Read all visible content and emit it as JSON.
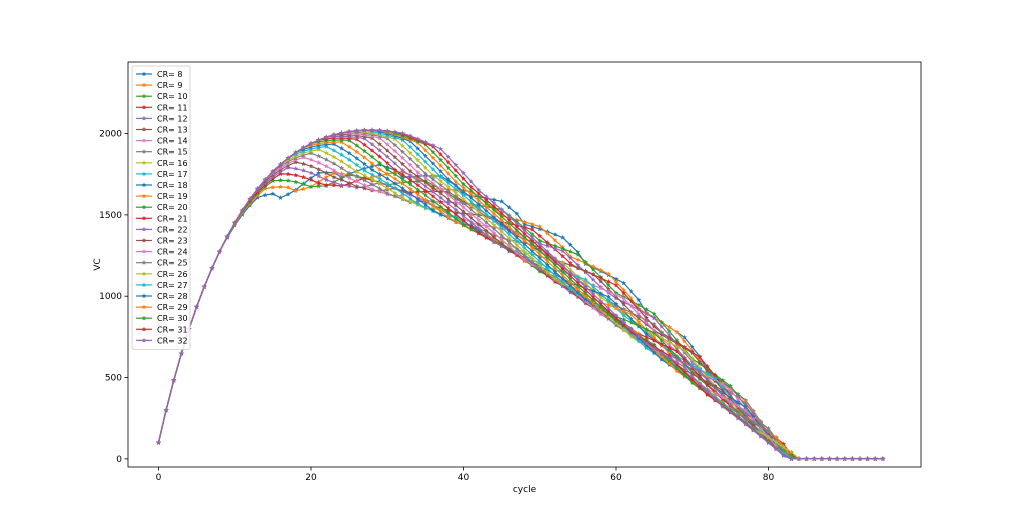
{
  "chart_data": {
    "type": "line",
    "title": "",
    "xlabel": "cycle",
    "ylabel": "VC",
    "xlim": [
      -4,
      100
    ],
    "ylim": [
      -50,
      2440
    ],
    "xticks": [
      0,
      20,
      40,
      60,
      80
    ],
    "yticks": [
      0,
      500,
      1000,
      1500,
      2000
    ],
    "legend_position": "top-left",
    "grid": false,
    "x_range": [
      0,
      95
    ],
    "series": [
      {
        "name": "CR= 8",
        "cr": 8,
        "color": "#1f77b4",
        "marker": "star"
      },
      {
        "name": "CR= 9",
        "cr": 9,
        "color": "#ff7f0e",
        "marker": "star"
      },
      {
        "name": "CR= 10",
        "cr": 10,
        "color": "#2ca02c",
        "marker": "star"
      },
      {
        "name": "CR= 11",
        "cr": 11,
        "color": "#d62728",
        "marker": "star"
      },
      {
        "name": "CR= 12",
        "cr": 12,
        "color": "#9467bd",
        "marker": "star"
      },
      {
        "name": "CR= 13",
        "cr": 13,
        "color": "#8c564b",
        "marker": "star"
      },
      {
        "name": "CR= 14",
        "cr": 14,
        "color": "#e377c2",
        "marker": "star"
      },
      {
        "name": "CR= 15",
        "cr": 15,
        "color": "#7f7f7f",
        "marker": "star"
      },
      {
        "name": "CR= 16",
        "cr": 16,
        "color": "#bcbd22",
        "marker": "star"
      },
      {
        "name": "CR= 17",
        "cr": 17,
        "color": "#17becf",
        "marker": "star"
      },
      {
        "name": "CR= 18",
        "cr": 18,
        "color": "#1f77b4",
        "marker": "star"
      },
      {
        "name": "CR= 19",
        "cr": 19,
        "color": "#ff7f0e",
        "marker": "star"
      },
      {
        "name": "CR= 20",
        "cr": 20,
        "color": "#2ca02c",
        "marker": "star"
      },
      {
        "name": "CR= 21",
        "cr": 21,
        "color": "#d62728",
        "marker": "star"
      },
      {
        "name": "CR= 22",
        "cr": 22,
        "color": "#9467bd",
        "marker": "star"
      },
      {
        "name": "CR= 23",
        "cr": 23,
        "color": "#8c564b",
        "marker": "star"
      },
      {
        "name": "CR= 24",
        "cr": 24,
        "color": "#e377c2",
        "marker": "star"
      },
      {
        "name": "CR= 25",
        "cr": 25,
        "color": "#7f7f7f",
        "marker": "star"
      },
      {
        "name": "CR= 26",
        "cr": 26,
        "color": "#bcbd22",
        "marker": "star"
      },
      {
        "name": "CR= 27",
        "cr": 27,
        "color": "#17becf",
        "marker": "star"
      },
      {
        "name": "CR= 28",
        "cr": 28,
        "color": "#1f77b4",
        "marker": "star"
      },
      {
        "name": "CR= 29",
        "cr": 29,
        "color": "#ff7f0e",
        "marker": "star"
      },
      {
        "name": "CR= 30",
        "cr": 30,
        "color": "#2ca02c",
        "marker": "star"
      },
      {
        "name": "CR= 31",
        "cr": 31,
        "color": "#d62728",
        "marker": "star"
      },
      {
        "name": "CR= 32",
        "cr": 32,
        "color": "#9467bd",
        "marker": "star"
      }
    ]
  }
}
